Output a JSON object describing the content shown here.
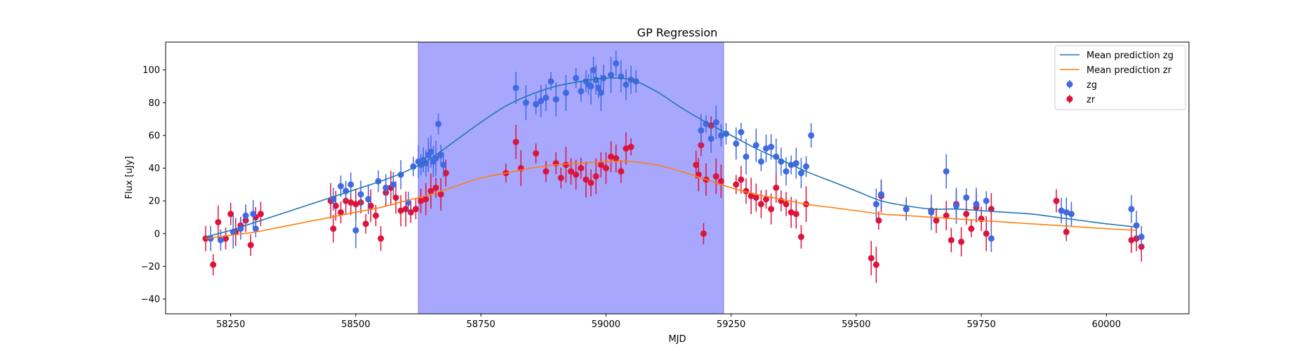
{
  "chart_data": {
    "type": "scatter",
    "title": "GP Regression",
    "xlabel": "MJD",
    "ylabel": "Flux [uJy]",
    "xlim": [
      58120,
      60165
    ],
    "ylim": [
      -49,
      117
    ],
    "xticks": [
      58250,
      58500,
      58750,
      59000,
      59250,
      59500,
      59750,
      60000
    ],
    "yticks": [
      -40,
      -20,
      0,
      20,
      40,
      60,
      80,
      100
    ],
    "grid": false,
    "legend_position": "upper right",
    "shaded_region": {
      "x": [
        58625,
        59235
      ],
      "color": "#a7a7fe"
    },
    "mean_predictions": [
      {
        "name": "Mean prediction zg",
        "color": "#1f77b4",
        "x": [
          58200,
          58250,
          58300,
          58350,
          58400,
          58450,
          58500,
          58550,
          58600,
          58650,
          58700,
          58750,
          58800,
          58850,
          58900,
          58950,
          59000,
          59050,
          59100,
          59150,
          59200,
          59250,
          59300,
          59350,
          59400,
          59450,
          59500,
          59550,
          59600,
          59650,
          59700,
          59750,
          59800,
          59850,
          59900,
          59950,
          60000,
          60060
        ],
        "y": [
          -2,
          2,
          7,
          12,
          17,
          22,
          27,
          32,
          38,
          46,
          57,
          68,
          78,
          85,
          90,
          93,
          95,
          94,
          87,
          77,
          68,
          60,
          52,
          45,
          38,
          32,
          26,
          20,
          17,
          15,
          15,
          14,
          13,
          12,
          10,
          8,
          6,
          4
        ]
      },
      {
        "name": "Mean prediction zr",
        "color": "#ff7f0e",
        "x": [
          58200,
          58250,
          58300,
          58350,
          58400,
          58450,
          58500,
          58550,
          58600,
          58650,
          58700,
          58750,
          58800,
          58850,
          58900,
          58950,
          59000,
          59050,
          59100,
          59150,
          59200,
          59250,
          59300,
          59350,
          59400,
          59450,
          59500,
          59550,
          59600,
          59650,
          59700,
          59750,
          59800,
          59850,
          59900,
          59950,
          60000,
          60060
        ],
        "y": [
          -3,
          -1,
          1,
          4,
          7,
          10,
          13,
          16,
          20,
          24,
          29,
          34,
          37,
          40,
          42,
          43,
          44,
          44,
          42,
          38,
          33,
          28,
          24,
          21,
          18,
          16,
          14,
          12,
          11,
          10,
          9,
          8,
          7,
          6,
          5,
          4,
          3,
          2
        ]
      }
    ],
    "series": [
      {
        "name": "zg",
        "color": "#4169e1",
        "x": [
          58210,
          58230,
          58255,
          58270,
          58280,
          58295,
          58300,
          58455,
          58470,
          58480,
          58490,
          58500,
          58510,
          58525,
          58545,
          58560,
          58575,
          58590,
          58605,
          58615,
          58625,
          58630,
          58635,
          58640,
          58645,
          58650,
          58655,
          58660,
          58665,
          58670,
          58675,
          58820,
          58840,
          58860,
          58870,
          58880,
          58890,
          58900,
          58920,
          58940,
          58950,
          58960,
          58965,
          58970,
          58975,
          58980,
          58985,
          58990,
          58995,
          59010,
          59020,
          59030,
          59040,
          59050,
          59060,
          59190,
          59200,
          59210,
          59220,
          59230,
          59240,
          59260,
          59270,
          59280,
          59300,
          59310,
          59320,
          59330,
          59340,
          59350,
          59360,
          59370,
          59380,
          59390,
          59400,
          59410,
          59540,
          59550,
          59600,
          59650,
          59680,
          59700,
          59720,
          59740,
          59760,
          59770,
          59910,
          59920,
          59930,
          60050,
          60060,
          60070
        ],
        "y": [
          -3,
          -4,
          1,
          3,
          11,
          12,
          3,
          21,
          29,
          26,
          30,
          2,
          24,
          21,
          32,
          28,
          30,
          36,
          19,
          41,
          44,
          42,
          45,
          43,
          48,
          50,
          44,
          46,
          67,
          48,
          42,
          89,
          80,
          79,
          81,
          83,
          93,
          82,
          86,
          95,
          87,
          93,
          91,
          90,
          100,
          94,
          89,
          86,
          95,
          97,
          104,
          96,
          91,
          94,
          93,
          63,
          67,
          58,
          68,
          60,
          61,
          55,
          62,
          47,
          54,
          44,
          52,
          53,
          47,
          44,
          38,
          42,
          43,
          37,
          41,
          60,
          18,
          24,
          15,
          13,
          38,
          17,
          22,
          18,
          20,
          -3,
          14,
          13,
          12,
          15,
          5,
          -2
        ],
        "error_bars": true
      },
      {
        "name": "zr",
        "color": "#dc143c",
        "x": [
          58200,
          58215,
          58225,
          58240,
          58250,
          58260,
          58270,
          58280,
          58290,
          58300,
          58310,
          58450,
          58455,
          58460,
          58470,
          58480,
          58490,
          58500,
          58510,
          58520,
          58530,
          58540,
          58550,
          58560,
          58570,
          58580,
          58590,
          58600,
          58610,
          58620,
          58630,
          58640,
          58650,
          58660,
          58670,
          58680,
          58800,
          58820,
          58830,
          58860,
          58880,
          58900,
          58910,
          58920,
          58930,
          58940,
          58950,
          58960,
          58970,
          58980,
          58990,
          59000,
          59010,
          59020,
          59030,
          59040,
          59050,
          59180,
          59185,
          59190,
          59195,
          59200,
          59210,
          59220,
          59230,
          59260,
          59270,
          59280,
          59290,
          59300,
          59310,
          59320,
          59330,
          59340,
          59350,
          59360,
          59370,
          59380,
          59390,
          59400,
          59530,
          59540,
          59545,
          59550,
          59600,
          59650,
          59660,
          59680,
          59690,
          59700,
          59710,
          59720,
          59730,
          59740,
          59750,
          59760,
          59770,
          59900,
          59910,
          59920,
          60050,
          60060,
          60070
        ],
        "y": [
          -3,
          -19,
          7,
          -3,
          12,
          1,
          5,
          8,
          -7,
          10,
          12,
          20,
          3,
          17,
          13,
          20,
          19,
          18,
          19,
          6,
          17,
          11,
          -3,
          25,
          28,
          22,
          14,
          15,
          13,
          15,
          20,
          21,
          26,
          28,
          24,
          37,
          37,
          56,
          40,
          49,
          38,
          43,
          34,
          42,
          38,
          36,
          40,
          33,
          31,
          35,
          42,
          40,
          47,
          46,
          38,
          52,
          53,
          42,
          36,
          54,
          0,
          33,
          66,
          35,
          32,
          30,
          33,
          26,
          23,
          22,
          18,
          21,
          15,
          28,
          20,
          18,
          13,
          12,
          -2,
          18,
          -15,
          -19,
          8,
          23,
          15,
          14,
          8,
          11,
          -4,
          18,
          -5,
          12,
          3,
          16,
          9,
          0,
          15,
          20,
          14,
          1,
          -4,
          -3,
          -8
        ]
      }
    ]
  }
}
